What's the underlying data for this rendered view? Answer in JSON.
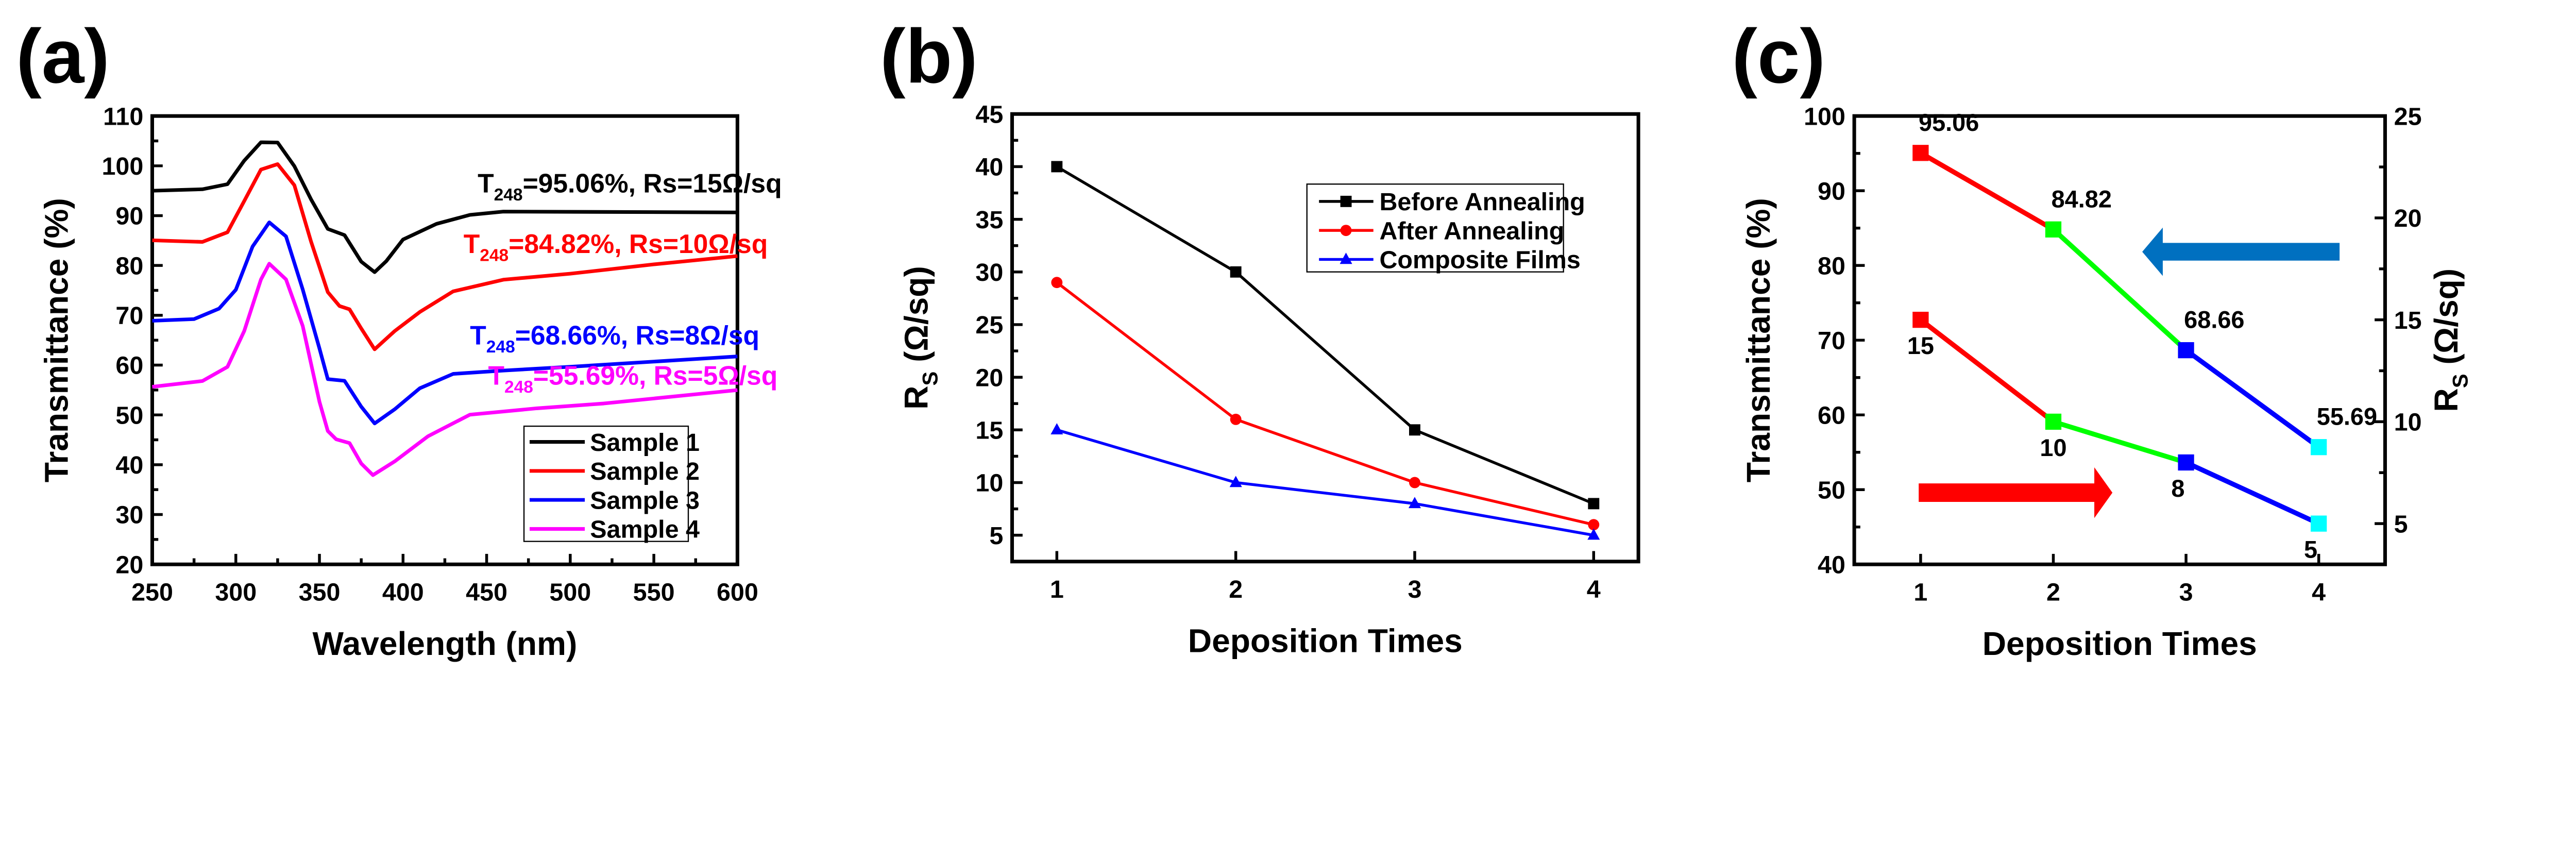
{
  "chart_data": [
    {
      "panel_label": "(a)",
      "type": "line",
      "xlabel": "Wavelength (nm)",
      "ylabel": "Transmittance (%)",
      "xlim": [
        250,
        600
      ],
      "ylim": [
        20,
        110
      ],
      "xticks": [
        "250",
        "300",
        "350",
        "400",
        "450",
        "500",
        "550",
        "600"
      ],
      "yticks": [
        "20",
        "30",
        "40",
        "50",
        "60",
        "70",
        "80",
        "90",
        "100",
        "110"
      ],
      "grid": false,
      "legend_position": "bottom-right",
      "series": [
        {
          "name": "Sample 1",
          "color": "#000000",
          "x": [
            250,
            280,
            295,
            305,
            315,
            325,
            335,
            345,
            355,
            365,
            375,
            383,
            390,
            400,
            420,
            440,
            460,
            600
          ],
          "y": [
            95,
            95,
            96,
            101,
            105,
            105,
            100,
            93,
            87,
            86,
            81,
            79,
            81,
            85,
            88,
            90,
            91,
            91
          ]
        },
        {
          "name": "Sample 2",
          "color": "#ff0000",
          "x": [
            250,
            280,
            295,
            305,
            315,
            325,
            335,
            345,
            355,
            362,
            368,
            375,
            383,
            395,
            410,
            430,
            460,
            500,
            550,
            600
          ],
          "y": [
            85,
            85,
            87,
            93,
            99,
            100,
            96,
            85,
            75,
            72,
            71,
            67,
            63,
            67,
            71,
            75,
            77,
            78,
            80,
            82
          ]
        },
        {
          "name": "Sample 3",
          "color": "#0000ff",
          "x": [
            250,
            275,
            290,
            300,
            310,
            320,
            330,
            340,
            350,
            355,
            365,
            375,
            383,
            395,
            410,
            430,
            460,
            500,
            600
          ],
          "y": [
            69,
            69,
            71,
            75,
            84,
            89,
            86,
            75,
            63,
            57,
            57,
            52,
            48.5,
            51,
            55,
            58,
            59,
            60,
            62
          ]
        },
        {
          "name": "Sample 4",
          "color": "#ff00ff",
          "x": [
            250,
            280,
            295,
            305,
            315,
            320,
            330,
            340,
            350,
            355,
            360,
            368,
            375,
            382,
            395,
            415,
            440,
            480,
            520,
            600
          ],
          "y": [
            55.5,
            57,
            60,
            67,
            77,
            80,
            77,
            68,
            53,
            47,
            45,
            44,
            40,
            38,
            41,
            46,
            50,
            51,
            52,
            55
          ]
        }
      ],
      "annotations": [
        {
          "main": "T",
          "sub": "248",
          "rest": "=95.06%, Rs=15Ω/sq",
          "color": "#000000"
        },
        {
          "main": "T",
          "sub": "248",
          "rest": "=84.82%, Rs=10Ω/sq",
          "color": "#ff0000"
        },
        {
          "main": "T",
          "sub": "248",
          "rest": "=68.66%, Rs=8Ω/sq",
          "color": "#0000ff"
        },
        {
          "main": "T",
          "sub": "248",
          "rest": "=55.69%, Rs=5Ω/sq",
          "color": "#ff00ff"
        }
      ]
    },
    {
      "panel_label": "(b)",
      "type": "line",
      "xlabel": "Deposition Times",
      "ylabel": {
        "main": "R",
        "sub": "S",
        "rest": " (Ω/sq)"
      },
      "xlim": [
        0.75,
        4.25
      ],
      "ylim": [
        2.5,
        45
      ],
      "xticks": [
        "1",
        "2",
        "3",
        "4"
      ],
      "yticks": [
        "5",
        "10",
        "15",
        "20",
        "25",
        "30",
        "35",
        "40",
        "45"
      ],
      "grid": false,
      "legend_position": "top-right",
      "x": [
        1,
        2,
        3,
        4
      ],
      "series": [
        {
          "name": "Before Annealing",
          "color": "#000000",
          "marker": "square",
          "values": [
            40,
            30,
            15,
            8
          ]
        },
        {
          "name": "After Annealing",
          "color": "#ff0000",
          "marker": "circle",
          "values": [
            29,
            16,
            10,
            6
          ]
        },
        {
          "name": "Composite Films",
          "color": "#0000ff",
          "marker": "triangle",
          "values": [
            15,
            10,
            8,
            5
          ]
        }
      ]
    },
    {
      "panel_label": "(c)",
      "type": "line",
      "xlabel": "Deposition Times",
      "ylabel": "Transmittance (%)",
      "ylabel_right": {
        "main": "R",
        "sub": "S",
        "rest": " (Ω/sq)"
      },
      "xlim": [
        0.5,
        4.5
      ],
      "ylim": [
        40,
        100
      ],
      "ylim_right": [
        3,
        25
      ],
      "xticks": [
        "1",
        "2",
        "3",
        "4"
      ],
      "yticks": [
        "40",
        "50",
        "60",
        "70",
        "80",
        "90",
        "100"
      ],
      "yticks_right": [
        "5",
        "10",
        "15",
        "20",
        "25"
      ],
      "grid": false,
      "x": [
        1,
        2,
        3,
        4
      ],
      "segment_colors": [
        "#ff0000",
        "#00ff00",
        "#0000ff"
      ],
      "marker_colors": [
        "#ff0000",
        "#00ff00",
        "#0000ff",
        "#00ffff"
      ],
      "series": [
        {
          "axis": "left",
          "values": [
            95.06,
            84.82,
            68.66,
            55.69
          ],
          "labels": [
            "95.06",
            "84.82",
            "68.66",
            "55.69"
          ]
        },
        {
          "axis": "right",
          "values": [
            15,
            10,
            8,
            5
          ],
          "labels": [
            "15",
            "10",
            "8",
            "5"
          ]
        }
      ],
      "arrows": [
        {
          "direction": "left",
          "color": "#0070c0"
        },
        {
          "direction": "right",
          "color": "#ff0000"
        }
      ]
    }
  ]
}
